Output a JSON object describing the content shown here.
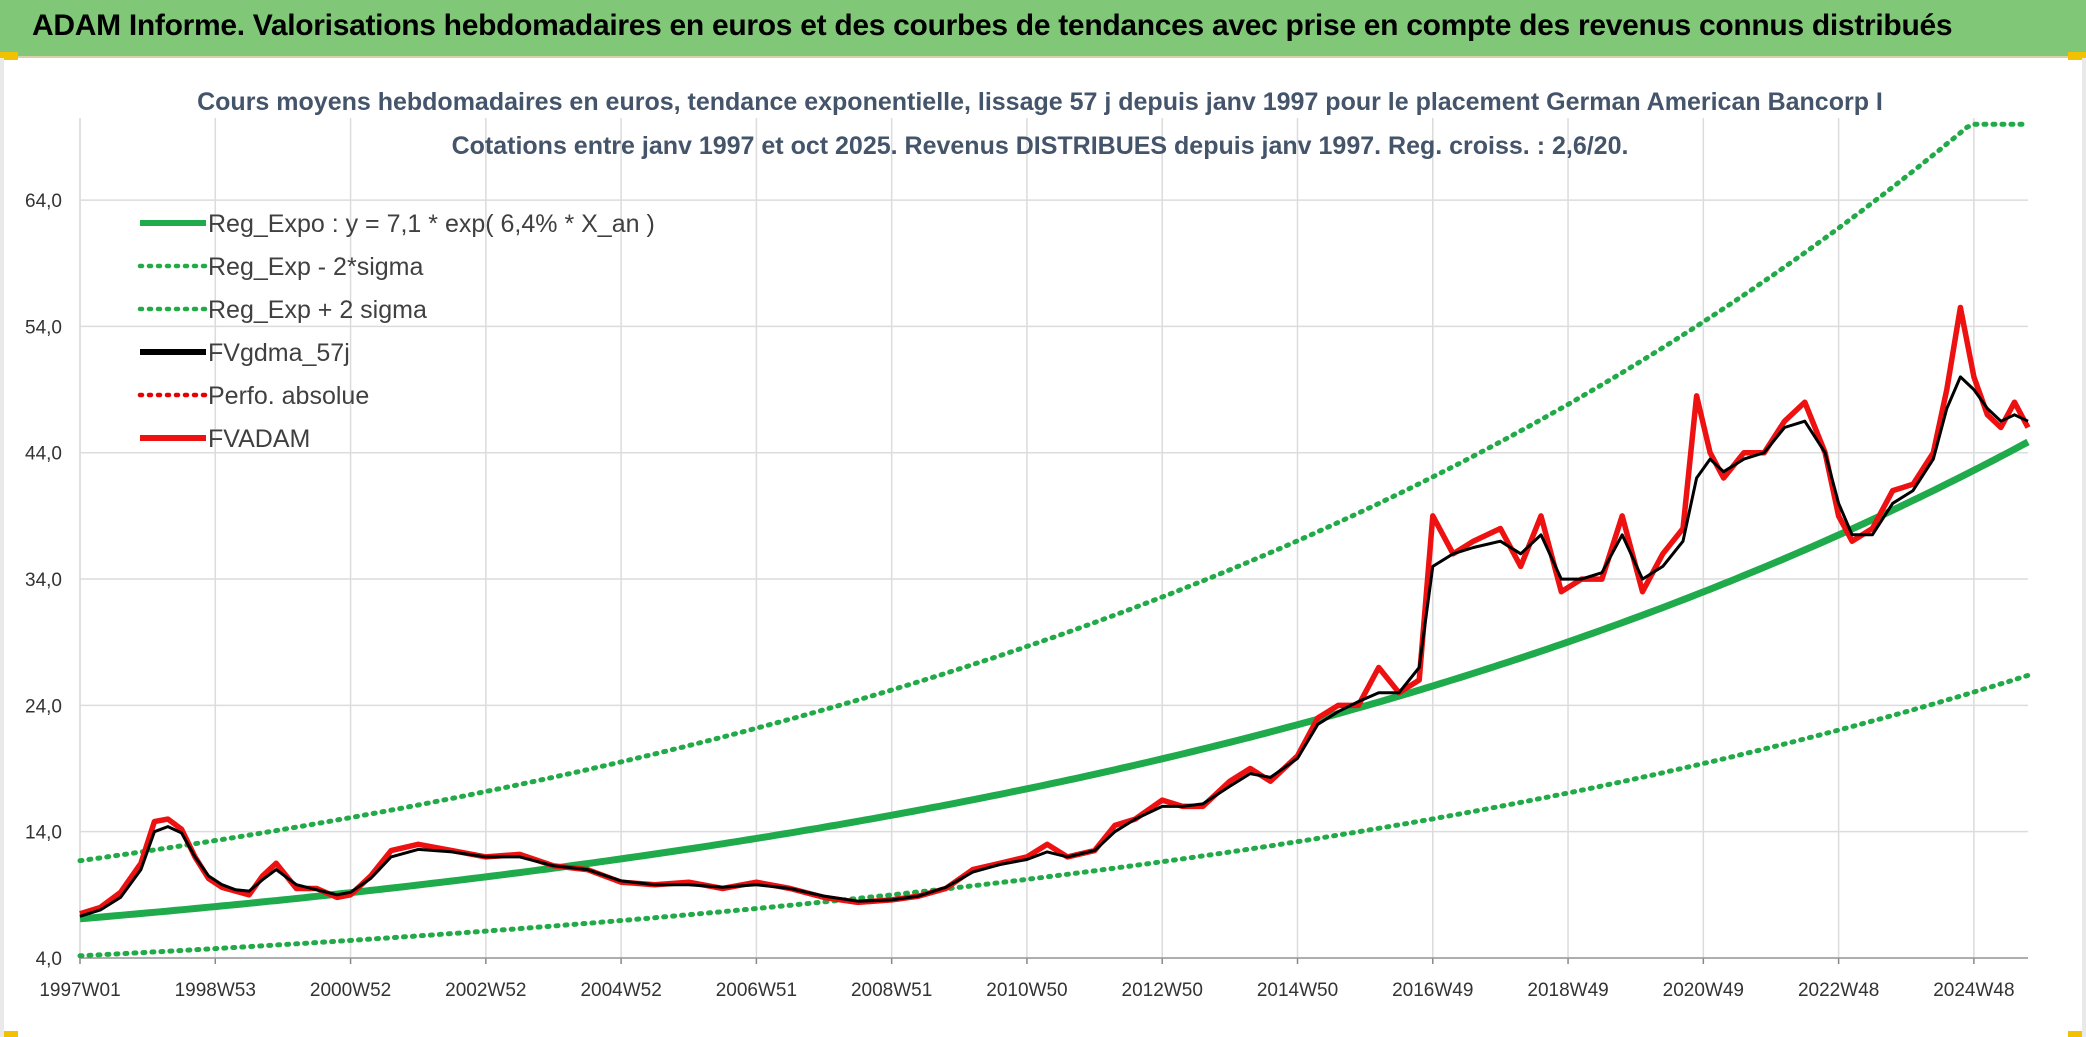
{
  "header": {
    "title": "ADAM Informe. Valorisations hebdomadaires en euros et des courbes de tendances avec prise en compte des revenus connus distribués"
  },
  "colors": {
    "banner": "#80c878",
    "reg_green": "#1faa4b",
    "sigma_green": "#22aa48",
    "fvgdma": "#000000",
    "perfo": "#e60000",
    "fvadam": "#ee1111",
    "grid": "#dcdcdc"
  },
  "chart_data": {
    "type": "line",
    "title_lines": [
      "Cours moyens hebdomadaires en euros, tendance exponentielle, lissage 57 j depuis janv 1997 pour le placement German American Bancorp I",
      "Cotations entre janv 1997 et oct 2025. Revenus DISTRIBUES depuis janv 1997. Reg. croiss. : 2,6/20."
    ],
    "xlabel": "",
    "ylabel": "",
    "x_range": [
      1997.0,
      2025.8
    ],
    "ylim": [
      4.0,
      70.5
    ],
    "y_ticks": [
      "4,0",
      "14,0",
      "24,0",
      "34,0",
      "44,0",
      "54,0",
      "64,0"
    ],
    "y_tick_values": [
      4,
      14,
      24,
      34,
      44,
      54,
      64
    ],
    "x_ticks": [
      "1997W01",
      "1998W53",
      "2000W52",
      "2002W52",
      "2004W52",
      "2006W51",
      "2008W51",
      "2010W50",
      "2012W50",
      "2014W50",
      "2016W49",
      "2018W49",
      "2020W49",
      "2022W48",
      "2024W48"
    ],
    "x_tick_values": [
      1997.0,
      1999.0,
      2001.0,
      2003.0,
      2005.0,
      2007.0,
      2009.0,
      2011.0,
      2013.0,
      2015.0,
      2017.0,
      2019.0,
      2021.0,
      2023.0,
      2025.0
    ],
    "grid": true,
    "legend_position": "top-left",
    "legend": [
      {
        "label": "Reg_Expo : y = 7,1 * exp( 6,4% *  X_an )",
        "style": "solid",
        "color": "#1faa4b"
      },
      {
        "label": "Reg_Exp - 2*sigma",
        "style": "dotted",
        "color": "#22aa48"
      },
      {
        "label": "Reg_Exp + 2 sigma",
        "style": "dotted",
        "color": "#22aa48"
      },
      {
        "label": "FVgdma_57j",
        "style": "solid",
        "color": "#000000"
      },
      {
        "label": "Perfo. absolue",
        "style": "dotted",
        "color": "#e60000"
      },
      {
        "label": "FVADAM",
        "style": "solid",
        "color": "#ee1111"
      }
    ],
    "regression": {
      "a": 7.1,
      "rate": 0.064,
      "x0": 1997.0,
      "lower_factor": 0.588,
      "upper_factor": 1.648,
      "cap": 70.0
    },
    "series": [
      {
        "name": "FVADAM",
        "x": [
          1997.0,
          1997.3,
          1997.6,
          1997.9,
          1998.1,
          1998.3,
          1998.5,
          1998.7,
          1998.9,
          1999.1,
          1999.3,
          1999.5,
          1999.7,
          1999.9,
          2000.2,
          2000.5,
          2000.8,
          2001.0,
          2001.3,
          2001.6,
          2002.0,
          2002.5,
          2003.0,
          2003.5,
          2004.0,
          2004.5,
          2005.0,
          2005.5,
          2006.0,
          2006.5,
          2007.0,
          2007.5,
          2008.0,
          2008.5,
          2009.0,
          2009.4,
          2009.8,
          2010.2,
          2010.6,
          2011.0,
          2011.3,
          2011.6,
          2012.0,
          2012.3,
          2012.6,
          2013.0,
          2013.3,
          2013.6,
          2014.0,
          2014.3,
          2014.6,
          2015.0,
          2015.3,
          2015.6,
          2015.9,
          2016.2,
          2016.5,
          2016.8,
          2017.0,
          2017.3,
          2017.6,
          2018.0,
          2018.3,
          2018.6,
          2018.9,
          2019.2,
          2019.5,
          2019.8,
          2020.1,
          2020.4,
          2020.7,
          2020.9,
          2021.1,
          2021.3,
          2021.6,
          2021.9,
          2022.2,
          2022.5,
          2022.8,
          2023.0,
          2023.2,
          2023.5,
          2023.8,
          2024.1,
          2024.4,
          2024.6,
          2024.8,
          2025.0,
          2025.2,
          2025.4,
          2025.6,
          2025.8
        ],
        "values": [
          7.5,
          8.0,
          9.2,
          11.5,
          14.8,
          15.0,
          14.2,
          12.0,
          10.3,
          9.6,
          9.3,
          9.0,
          10.5,
          11.5,
          9.5,
          9.5,
          8.8,
          9.0,
          10.5,
          12.5,
          13.0,
          12.5,
          12.0,
          12.2,
          11.3,
          11.0,
          10.0,
          9.8,
          10.0,
          9.5,
          10.0,
          9.5,
          8.8,
          8.4,
          8.6,
          8.9,
          9.5,
          11.0,
          11.5,
          12.0,
          13.0,
          12.0,
          12.5,
          14.5,
          15.0,
          16.5,
          16.0,
          16.0,
          18.0,
          19.0,
          18.0,
          20.0,
          23.0,
          24.0,
          24.0,
          27.0,
          25.0,
          26.0,
          39.0,
          36.0,
          37.0,
          38.0,
          35.0,
          39.0,
          33.0,
          34.0,
          34.0,
          39.0,
          33.0,
          36.0,
          38.0,
          48.5,
          44.0,
          42.0,
          44.0,
          44.0,
          46.5,
          48.0,
          44.0,
          39.0,
          37.0,
          38.0,
          41.0,
          41.5,
          44.0,
          49.0,
          55.5,
          50.0,
          47.0,
          46.0,
          48.0,
          46.0
        ]
      },
      {
        "name": "FVgdma_57j",
        "x": [
          1997.0,
          1997.3,
          1997.6,
          1997.9,
          1998.1,
          1998.3,
          1998.5,
          1998.7,
          1998.9,
          1999.1,
          1999.3,
          1999.5,
          1999.7,
          1999.9,
          2000.2,
          2000.5,
          2000.8,
          2001.0,
          2001.3,
          2001.6,
          2002.0,
          2002.5,
          2003.0,
          2003.5,
          2004.0,
          2004.5,
          2005.0,
          2005.5,
          2006.0,
          2006.5,
          2007.0,
          2007.5,
          2008.0,
          2008.5,
          2009.0,
          2009.4,
          2009.8,
          2010.2,
          2010.6,
          2011.0,
          2011.3,
          2011.6,
          2012.0,
          2012.3,
          2012.6,
          2013.0,
          2013.3,
          2013.6,
          2014.0,
          2014.3,
          2014.6,
          2015.0,
          2015.3,
          2015.6,
          2015.9,
          2016.2,
          2016.5,
          2016.8,
          2017.0,
          2017.3,
          2017.6,
          2018.0,
          2018.3,
          2018.6,
          2018.9,
          2019.2,
          2019.5,
          2019.8,
          2020.1,
          2020.4,
          2020.7,
          2020.9,
          2021.1,
          2021.3,
          2021.6,
          2021.9,
          2022.2,
          2022.5,
          2022.8,
          2023.0,
          2023.2,
          2023.5,
          2023.8,
          2024.1,
          2024.4,
          2024.6,
          2024.8,
          2025.0,
          2025.2,
          2025.4,
          2025.6,
          2025.8
        ],
        "values": [
          7.3,
          7.8,
          8.8,
          11.0,
          14.0,
          14.4,
          13.9,
          12.0,
          10.5,
          9.8,
          9.4,
          9.3,
          10.2,
          11.0,
          9.8,
          9.4,
          9.0,
          9.2,
          10.3,
          12.0,
          12.6,
          12.4,
          12.0,
          12.0,
          11.3,
          11.0,
          10.1,
          9.8,
          9.8,
          9.6,
          9.8,
          9.5,
          8.9,
          8.5,
          8.6,
          8.9,
          9.6,
          10.8,
          11.4,
          11.8,
          12.4,
          12.0,
          12.5,
          14.0,
          15.0,
          16.0,
          16.0,
          16.2,
          17.6,
          18.6,
          18.3,
          19.8,
          22.5,
          23.5,
          24.3,
          25.0,
          25.0,
          27.0,
          35.0,
          36.0,
          36.5,
          37.0,
          36.0,
          37.5,
          34.0,
          34.0,
          34.5,
          37.5,
          34.0,
          35.0,
          37.0,
          42.0,
          43.5,
          42.5,
          43.5,
          44.0,
          46.0,
          46.5,
          44.0,
          40.0,
          37.5,
          37.5,
          40.0,
          41.0,
          43.5,
          47.5,
          50.0,
          49.0,
          47.5,
          46.5,
          47.0,
          46.5
        ]
      }
    ]
  }
}
